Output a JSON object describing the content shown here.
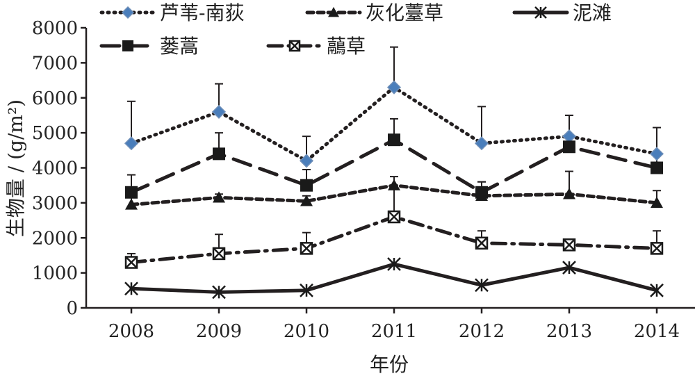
{
  "chart_data": {
    "type": "line",
    "xlabel": "年份",
    "ylabel": "生物量 / (g/m²)",
    "categories": [
      "2008",
      "2009",
      "2010",
      "2011",
      "2012",
      "2013",
      "2014"
    ],
    "ylim": [
      0,
      8000
    ],
    "yticks": [
      "0",
      "1000",
      "2000",
      "3000",
      "4000",
      "5000",
      "6000",
      "7000",
      "8000"
    ],
    "grid": false,
    "legend_position": "top",
    "series": [
      {
        "name": "芦苇-南荻",
        "values": [
          4700,
          5600,
          4200,
          6300,
          4700,
          4900,
          4400
        ],
        "errors": [
          1200,
          800,
          700,
          1150,
          1050,
          600,
          750
        ],
        "line_style": "dotted",
        "marker": "diamond",
        "marker_color": "#4a7ebb"
      },
      {
        "name": "灰化薹草",
        "values": [
          2950,
          3150,
          3050,
          3500,
          3200,
          3250,
          3000
        ],
        "errors": [
          200,
          100,
          150,
          250,
          400,
          650,
          350
        ],
        "line_style": "short-dash",
        "marker": "triangle",
        "marker_color": "#1a1a1a"
      },
      {
        "name": "泥滩",
        "values": [
          550,
          450,
          500,
          1250,
          650,
          1150,
          500
        ],
        "errors": [
          0,
          0,
          0,
          0,
          0,
          0,
          0
        ],
        "line_style": "solid",
        "marker": "star-cross",
        "marker_color": "#1a1a1a"
      },
      {
        "name": "蒌蒿",
        "values": [
          3300,
          4400,
          3500,
          4800,
          3300,
          4600,
          4000
        ],
        "errors": [
          500,
          600,
          450,
          600,
          300,
          900,
          350
        ],
        "line_style": "long-dash",
        "marker": "square",
        "marker_color": "#1a1a1a"
      },
      {
        "name": "虉草",
        "values": [
          1300,
          1550,
          1700,
          2600,
          1850,
          1800,
          1700
        ],
        "errors": [
          250,
          550,
          450,
          800,
          350,
          0,
          500
        ],
        "line_style": "dash-dot",
        "marker": "x-box",
        "marker_color": "#1a1a1a"
      }
    ]
  },
  "colors": {
    "line": "#231f20",
    "accent": "#4a7ebb"
  }
}
